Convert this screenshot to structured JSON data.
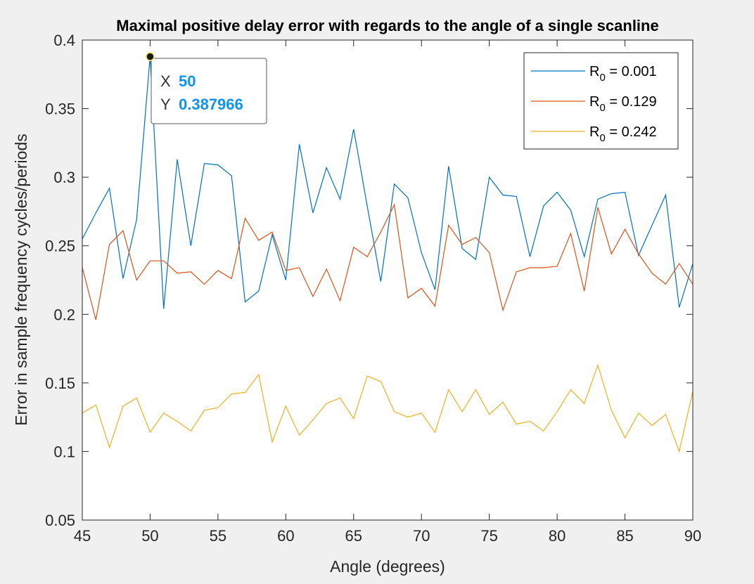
{
  "chart_data": {
    "type": "line",
    "title": "Maximal positive delay error with regards to the angle of a single scanline",
    "xlabel": "Angle (degrees)",
    "ylabel": "Error in sample frequency cycles/periods",
    "xlim": [
      45,
      90
    ],
    "ylim": [
      0.05,
      0.4
    ],
    "xticks": [
      45,
      50,
      55,
      60,
      65,
      70,
      75,
      80,
      85,
      90
    ],
    "yticks": [
      0.05,
      0.1,
      0.15,
      0.2,
      0.25,
      0.3,
      0.35,
      0.4
    ],
    "xtick_labels": [
      "45",
      "50",
      "55",
      "60",
      "65",
      "70",
      "75",
      "80",
      "85",
      "90"
    ],
    "ytick_labels": [
      "0.05",
      "0.1",
      "0.15",
      "0.2",
      "0.25",
      "0.3",
      "0.35",
      "0.4"
    ],
    "grid": false,
    "legend_position": "top-right",
    "x": [
      45,
      46,
      47,
      48,
      49,
      50,
      51,
      52,
      53,
      54,
      55,
      56,
      57,
      58,
      59,
      60,
      61,
      62,
      63,
      64,
      65,
      66,
      67,
      68,
      69,
      70,
      71,
      72,
      73,
      74,
      75,
      76,
      77,
      78,
      79,
      80,
      81,
      82,
      83,
      84,
      85,
      86,
      87,
      88,
      89,
      90
    ],
    "series": [
      {
        "legend_base": "R",
        "legend_sub": "0",
        "legend_value": " = 0.001",
        "color": "#0072bd",
        "values": [
          0.255,
          0.274,
          0.292,
          0.226,
          0.269,
          0.388,
          0.204,
          0.313,
          0.25,
          0.31,
          0.309,
          0.301,
          0.209,
          0.217,
          0.258,
          0.225,
          0.324,
          0.274,
          0.307,
          0.284,
          0.335,
          0.279,
          0.224,
          0.295,
          0.285,
          0.245,
          0.218,
          0.308,
          0.248,
          0.24,
          0.3,
          0.287,
          0.286,
          0.242,
          0.279,
          0.289,
          0.276,
          0.242,
          0.284,
          0.288,
          0.289,
          0.243,
          0.265,
          0.287,
          0.205,
          0.237
        ]
      },
      {
        "legend_base": "R",
        "legend_sub": "0",
        "legend_value": " = 0.129",
        "color": "#d95319",
        "values": [
          0.234,
          0.196,
          0.251,
          0.261,
          0.225,
          0.239,
          0.239,
          0.23,
          0.231,
          0.222,
          0.232,
          0.226,
          0.27,
          0.254,
          0.26,
          0.232,
          0.234,
          0.213,
          0.233,
          0.21,
          0.249,
          0.242,
          0.26,
          0.28,
          0.212,
          0.219,
          0.206,
          0.265,
          0.251,
          0.256,
          0.245,
          0.203,
          0.231,
          0.234,
          0.234,
          0.235,
          0.259,
          0.217,
          0.278,
          0.244,
          0.262,
          0.244,
          0.23,
          0.222,
          0.237,
          0.222
        ]
      },
      {
        "legend_base": "R",
        "legend_sub": "0",
        "legend_value": " = 0.242",
        "color": "#edb120",
        "values": [
          0.128,
          0.134,
          0.103,
          0.133,
          0.139,
          0.114,
          0.128,
          0.122,
          0.115,
          0.13,
          0.132,
          0.142,
          0.143,
          0.156,
          0.107,
          0.133,
          0.112,
          0.123,
          0.135,
          0.139,
          0.124,
          0.155,
          0.151,
          0.129,
          0.125,
          0.128,
          0.114,
          0.145,
          0.129,
          0.145,
          0.127,
          0.136,
          0.12,
          0.122,
          0.115,
          0.129,
          0.145,
          0.135,
          0.163,
          0.13,
          0.11,
          0.128,
          0.119,
          0.127,
          0.1,
          0.144
        ]
      }
    ],
    "datatip": {
      "x_label": "X",
      "y_label": "Y",
      "x_value": "50",
      "y_value": "0.387966",
      "point_x": 50,
      "point_y": 0.387966,
      "value_color": "#0f94ee"
    }
  }
}
